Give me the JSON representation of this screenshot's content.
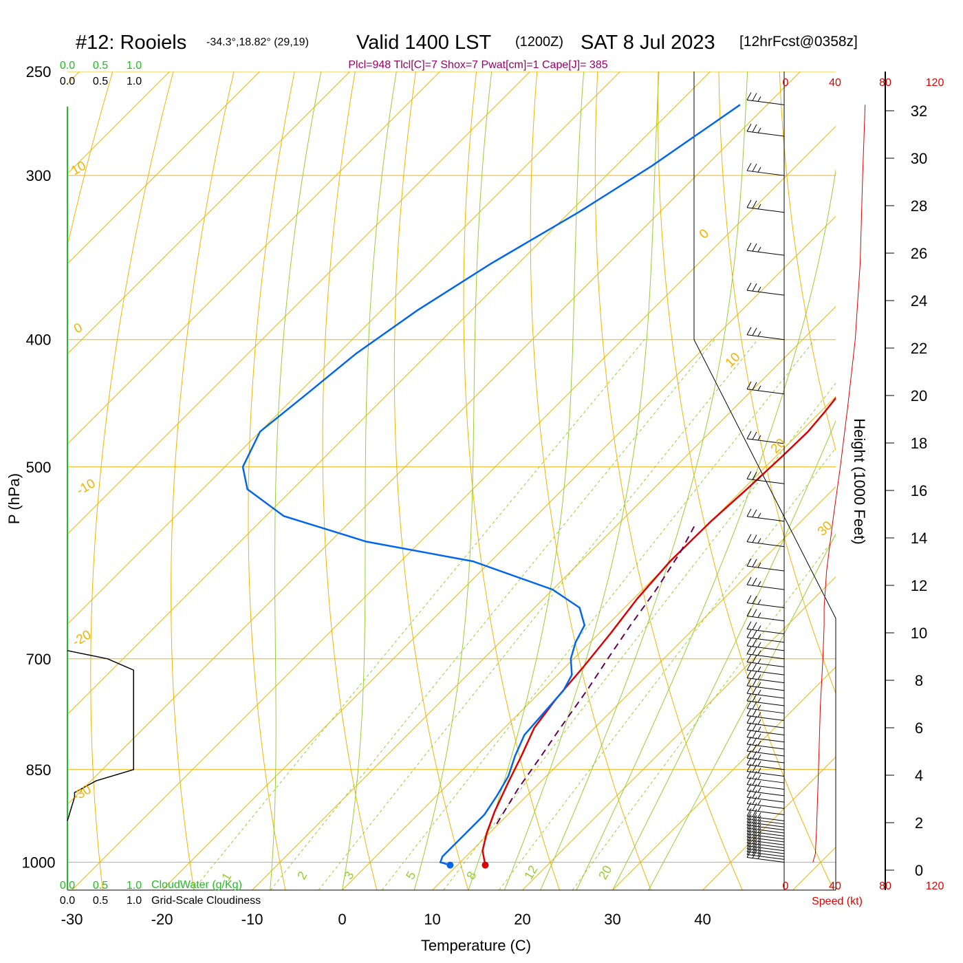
{
  "header": {
    "station": "#12: Rooiels",
    "coords": "-34.3°,18.82° (29,19)",
    "valid": "Valid 1400 LST",
    "utc": "(1200Z)",
    "date": "SAT 8 Jul 2023",
    "forecast": "[12hrFcst@0358z]",
    "params": "Plcl=948 Tlcl[C]=7 Shox=7 Pwat[cm]=1 Cape[J]= 385"
  },
  "colors": {
    "temperature": "#dd0000",
    "dewpoint": "#0066ee",
    "parcel": "#660055",
    "isobar": "#f0b400",
    "isotherm": "#f0b400",
    "dry_adiabat": "#f0b400",
    "moist_adiabat": "#99cc33",
    "mixing_ratio": "#99cc33",
    "cloudwater": "#22bb22",
    "cloudiness": "#000000"
  },
  "chart_data": {
    "type": "line",
    "title": "#12: Rooiels",
    "xlabel": "Temperature (C)",
    "ylabel": "P (hPa)",
    "right_ylabel": "Height (1000 Feet)",
    "xlim": [
      -34,
      36
    ],
    "x_ticks": [
      -30,
      -20,
      -10,
      0,
      10,
      20,
      30,
      40
    ],
    "pressure_ticks": [
      250,
      300,
      400,
      500,
      700,
      850,
      1000
    ],
    "height_ticks": [
      0,
      2,
      4,
      6,
      8,
      10,
      12,
      14,
      16,
      18,
      20,
      22,
      24,
      26,
      28,
      30,
      32
    ],
    "isotherm_labels": [
      "10",
      "0",
      "-10",
      "-20",
      "-30",
      "0",
      "10",
      "20",
      "30"
    ],
    "mixing_ratio_labels": [
      "1",
      "2",
      "3",
      "5",
      "8",
      "12",
      "20"
    ],
    "cloud_axis_top_green": [
      "0.0",
      "0.5",
      "1.0"
    ],
    "cloud_axis_top_black": [
      "0.0",
      "0.5",
      "1.0"
    ],
    "cloud_axis_bottom_green": [
      "0.0",
      "0.5",
      "1.0"
    ],
    "cloud_axis_bottom_black": [
      "0.0",
      "0.5",
      "1.0"
    ],
    "cloudwater_label": "CloudWater (g/Kg)",
    "cloudiness_label": "Grid-Scale Cloudiness",
    "speed_ticks_top": [
      "0",
      "40",
      "80",
      "120"
    ],
    "speed_ticks_bottom": [
      "0",
      "40",
      "80",
      "120"
    ],
    "speed_label": "Speed (kt)",
    "series": [
      {
        "kind": "temperature",
        "points": [
          [
            13.1,
            1005
          ],
          [
            11.2,
            980
          ],
          [
            9.7,
            950
          ],
          [
            8.2,
            915
          ],
          [
            6.5,
            870
          ],
          [
            5.0,
            830
          ],
          [
            3.3,
            790
          ],
          [
            2.5,
            750
          ],
          [
            2.0,
            710
          ],
          [
            1.3,
            670
          ],
          [
            0.4,
            630
          ],
          [
            -0.1,
            590
          ],
          [
            0.0,
            550
          ],
          [
            0.4,
            520
          ],
          [
            0.7,
            490
          ],
          [
            0.8,
            470
          ],
          [
            0.5,
            455
          ],
          [
            -0.2,
            430
          ],
          [
            -1.4,
            410
          ],
          [
            -3.2,
            390
          ],
          [
            -4.5,
            370
          ],
          [
            -4.3,
            350
          ],
          [
            -4.0,
            330
          ],
          [
            -3.2,
            310
          ],
          [
            -1.8,
            290
          ],
          [
            0.2,
            265
          ]
        ]
      },
      {
        "kind": "dewpoint",
        "points": [
          [
            9.2,
            1005
          ],
          [
            7.8,
            1000
          ],
          [
            7.4,
            990
          ],
          [
            7.4,
            960
          ],
          [
            7.4,
            920
          ],
          [
            6.7,
            890
          ],
          [
            5.8,
            860
          ],
          [
            4.3,
            830
          ],
          [
            3.0,
            800
          ],
          [
            2.6,
            760
          ],
          [
            2.4,
            740
          ],
          [
            1.6,
            720
          ],
          [
            -0.3,
            700
          ],
          [
            -1.6,
            680
          ],
          [
            -2.5,
            660
          ],
          [
            -5.0,
            640
          ],
          [
            -10.0,
            620
          ],
          [
            -22.0,
            590
          ],
          [
            -36.0,
            570
          ],
          [
            -48.0,
            545
          ],
          [
            -55.0,
            520
          ],
          [
            -58.0,
            500
          ],
          [
            -60.0,
            470
          ],
          [
            -59.0,
            440
          ],
          [
            -58.0,
            410
          ],
          [
            -56.0,
            380
          ],
          [
            -53.0,
            350
          ],
          [
            -49.0,
            320
          ],
          [
            -46.0,
            295
          ],
          [
            -43.0,
            265
          ]
        ]
      },
      {
        "kind": "parcel",
        "points": [
          [
            9.8,
            935
          ],
          [
            8.3,
            880
          ],
          [
            7.2,
            830
          ],
          [
            6.2,
            790
          ],
          [
            5.0,
            740
          ],
          [
            3.8,
            700
          ],
          [
            2.6,
            660
          ],
          [
            1.5,
            620
          ],
          [
            0.0,
            580
          ],
          [
            -1.3,
            555
          ]
        ]
      }
    ],
    "cloudwater_points": [
      [
        0,
        250
      ],
      [
        0,
        1030
      ]
    ],
    "cloudiness_points": [
      [
        0.0,
        690
      ],
      [
        0.45,
        700
      ],
      [
        0.74,
        714
      ],
      [
        0.74,
        850
      ],
      [
        0.32,
        867
      ],
      [
        0.08,
        885
      ],
      [
        0.08,
        892
      ],
      [
        0.0,
        930
      ]
    ],
    "height_profile_speed_kt": [
      [
        22,
        1000
      ],
      [
        24,
        985
      ],
      [
        25,
        940
      ],
      [
        26,
        880
      ],
      [
        27,
        820
      ],
      [
        28,
        760
      ],
      [
        30,
        700
      ],
      [
        31,
        660
      ],
      [
        31,
        640
      ],
      [
        33,
        600
      ],
      [
        38,
        550
      ],
      [
        44,
        500
      ],
      [
        50,
        450
      ],
      [
        56,
        400
      ],
      [
        60,
        350
      ],
      [
        62,
        300
      ],
      [
        64,
        265
      ]
    ],
    "wind_barb_pressures": [
      1000,
      995,
      990,
      985,
      980,
      975,
      970,
      965,
      960,
      955,
      950,
      945,
      940,
      935,
      930,
      920,
      910,
      900,
      890,
      880,
      870,
      860,
      850,
      840,
      830,
      820,
      810,
      800,
      790,
      780,
      770,
      760,
      750,
      740,
      730,
      720,
      710,
      700,
      690,
      680,
      670,
      655,
      640,
      620,
      600,
      575,
      550,
      515,
      480,
      440,
      400,
      370,
      345,
      320,
      300,
      280,
      265
    ]
  }
}
